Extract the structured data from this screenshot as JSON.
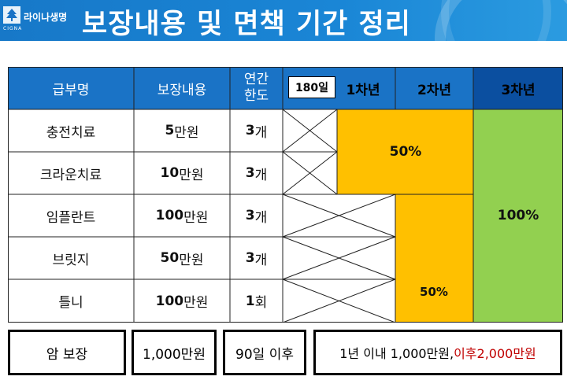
{
  "header": {
    "logo_text": "라이나생명",
    "logo_sub": "CIGNA",
    "title": "보장내용 및 면책 기간 정리"
  },
  "table": {
    "headers": {
      "name": "급부명",
      "coverage": "보장내용",
      "limit_line1": "연간",
      "limit_line2": "한도",
      "days180": "180일",
      "year1": "1차년",
      "year2": "2차년",
      "year3": "3차년"
    },
    "rows": [
      {
        "name": "충전치료",
        "coverage_num": "5",
        "coverage_unit": "만원",
        "limit_num": "3",
        "limit_unit": "개"
      },
      {
        "name": "크라운치료",
        "coverage_num": "10",
        "coverage_unit": "만원",
        "limit_num": "3",
        "limit_unit": "개"
      },
      {
        "name": "임플란트",
        "coverage_num": "100",
        "coverage_unit": "만원",
        "limit_num": "3",
        "limit_unit": "개"
      },
      {
        "name": "브릿지",
        "coverage_num": "50",
        "coverage_unit": "만원",
        "limit_num": "3",
        "limit_unit": "개"
      },
      {
        "name": "틀니",
        "coverage_num": "100",
        "coverage_unit": "만원",
        "limit_num": "1",
        "limit_unit": "회"
      }
    ],
    "rate_upper_50": "50%",
    "rate_lower_50": "50%",
    "rate_100": "100%"
  },
  "colors": {
    "header_blue": "#1a73c6",
    "header_dark_blue": "#0b4fa0",
    "reduced_rate_yellow": "#ffc000",
    "full_rate_green": "#92d050",
    "accent_red": "#c00000"
  },
  "bottom": {
    "cancer_label": "암 보장",
    "cancer_amount": "1,000만원",
    "waiting": "90일 이후",
    "detail_main": "1년 이내 1,000만원,",
    "detail_red": "이후2,000만원"
  }
}
